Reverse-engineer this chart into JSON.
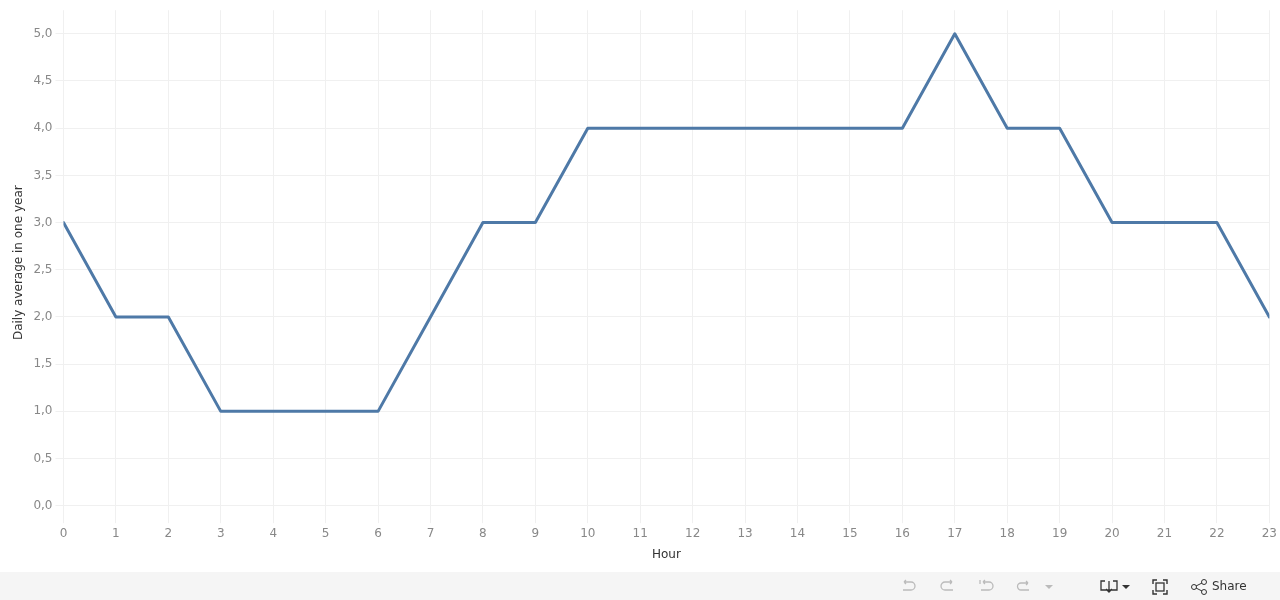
{
  "chart_data": {
    "type": "line",
    "xlabel": "Hour",
    "ylabel": "Daily average in one year",
    "x": [
      0,
      1,
      2,
      3,
      4,
      5,
      6,
      7,
      8,
      9,
      10,
      11,
      12,
      13,
      14,
      15,
      16,
      17,
      18,
      19,
      20,
      21,
      22,
      23
    ],
    "xlim": [
      0,
      23
    ],
    "xticks": [
      0,
      1,
      2,
      3,
      4,
      5,
      6,
      7,
      8,
      9,
      10,
      11,
      12,
      13,
      14,
      15,
      16,
      17,
      18,
      19,
      20,
      21,
      22,
      23
    ],
    "series": [
      {
        "color": "#4e79a7",
        "values": [
          3,
          2,
          2,
          1,
          1,
          1,
          1,
          2,
          3,
          3,
          4,
          4,
          4,
          4,
          4,
          4,
          4,
          5,
          4,
          4,
          3,
          3,
          3,
          2
        ]
      }
    ],
    "ylim": [
      -0.1,
      5.25
    ],
    "yticks": [
      {
        "value": 0,
        "label": "0,0"
      },
      {
        "value": 0.5,
        "label": "0,5"
      },
      {
        "value": 1,
        "label": "1,0"
      },
      {
        "value": 1.5,
        "label": "1,5"
      },
      {
        "value": 2,
        "label": "2,0"
      },
      {
        "value": 2.5,
        "label": "2,5"
      },
      {
        "value": 3,
        "label": "3,0"
      },
      {
        "value": 3.5,
        "label": "3,5"
      },
      {
        "value": 4,
        "label": "4,0"
      },
      {
        "value": 4.5,
        "label": "4,5"
      },
      {
        "value": 5,
        "label": "5,0"
      }
    ],
    "grid": true,
    "marker": "none",
    "line_style": "solid",
    "annotations": [
      "Share"
    ]
  }
}
